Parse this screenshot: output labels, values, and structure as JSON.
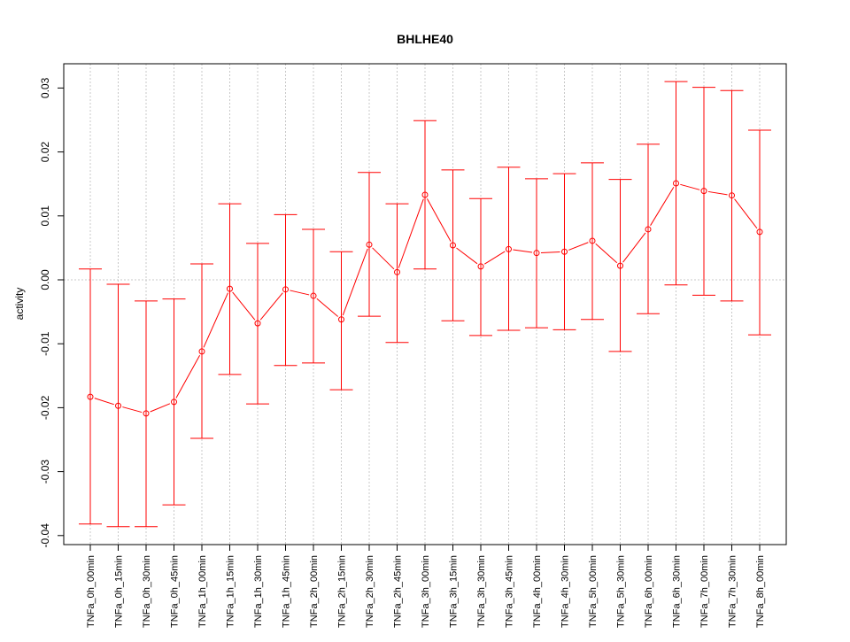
{
  "chart_data": {
    "type": "line",
    "title": "BHLHE40",
    "xlabel": "",
    "ylabel": "activity",
    "ylim": [
      -0.0415,
      0.0338
    ],
    "yticks": [
      -0.04,
      -0.03,
      -0.02,
      -0.01,
      0.0,
      0.01,
      0.02,
      0.03
    ],
    "ytick_labels": [
      "-0.04",
      "-0.03",
      "-0.02",
      "-0.01",
      "0.00",
      "0.01",
      "0.02",
      "0.03"
    ],
    "grid": "vertical dotted at each category, horizontal dotted at 0",
    "categories": [
      "TNFa_0h_00min",
      "TNFa_0h_15min",
      "TNFa_0h_30min",
      "TNFa_0h_45min",
      "TNFa_1h_00min",
      "TNFa_1h_15min",
      "TNFa_1h_30min",
      "TNFa_1h_45min",
      "TNFa_2h_00min",
      "TNFa_2h_15min",
      "TNFa_2h_30min",
      "TNFa_2h_45min",
      "TNFa_3h_00min",
      "TNFa_3h_15min",
      "TNFa_3h_30min",
      "TNFa_3h_45min",
      "TNFa_4h_00min",
      "TNFa_4h_30min",
      "TNFa_5h_00min",
      "TNFa_5h_30min",
      "TNFa_6h_00min",
      "TNFa_6h_30min",
      "TNFa_7h_00min",
      "TNFa_7h_30min",
      "TNFa_8h_00min"
    ],
    "series": [
      {
        "name": "activity",
        "color": "#ff0000",
        "values": [
          -0.0183,
          -0.0197,
          -0.0209,
          -0.0191,
          -0.0112,
          -0.0014,
          -0.0068,
          -0.0015,
          -0.0025,
          -0.0062,
          0.0055,
          0.0012,
          0.0133,
          0.0054,
          0.0021,
          0.0048,
          0.0042,
          0.0044,
          0.0061,
          0.0022,
          0.0079,
          0.0151,
          0.0139,
          0.0132,
          0.0075
        ],
        "upper": [
          0.0017,
          -0.0007,
          -0.0033,
          -0.003,
          0.0025,
          0.0119,
          0.0057,
          0.0102,
          0.0079,
          0.0044,
          0.0168,
          0.0119,
          0.0249,
          0.0172,
          0.0127,
          0.0176,
          0.0158,
          0.0166,
          0.0183,
          0.0157,
          0.0212,
          0.031,
          0.0301,
          0.0296,
          0.0234
        ],
        "lower": [
          -0.0382,
          -0.0386,
          -0.0386,
          -0.0352,
          -0.0248,
          -0.0148,
          -0.0194,
          -0.0134,
          -0.013,
          -0.0172,
          -0.0057,
          -0.0098,
          0.0017,
          -0.0064,
          -0.0087,
          -0.0079,
          -0.0075,
          -0.0078,
          -0.0062,
          -0.0112,
          -0.0053,
          -0.0008,
          -0.0024,
          -0.0033,
          -0.0086
        ]
      }
    ]
  }
}
